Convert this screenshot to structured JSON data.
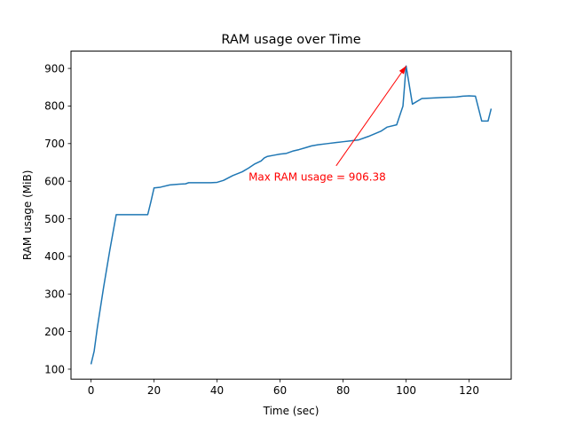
{
  "chart_data": {
    "type": "line",
    "title": "RAM usage over Time",
    "xlabel": "Time (sec)",
    "ylabel": "RAM usage (MiB)",
    "xlim": [
      -6.35,
      133.35
    ],
    "ylim": [
      73.5,
      946.0
    ],
    "xticks": [
      0,
      20,
      40,
      60,
      80,
      100,
      120
    ],
    "yticks": [
      100,
      200,
      300,
      400,
      500,
      600,
      700,
      800,
      900
    ],
    "grid": false,
    "series": [
      {
        "color": "#1f77b4",
        "x": [
          0,
          1,
          2,
          4,
          6,
          8,
          8.5,
          9,
          10,
          15,
          18,
          19,
          20,
          22,
          25,
          28,
          30,
          31,
          35,
          38,
          40,
          42,
          45,
          48,
          50,
          52,
          54,
          55,
          56,
          58,
          60,
          62,
          64,
          66,
          68,
          70,
          72,
          75,
          78,
          80,
          82,
          85,
          88,
          92,
          94,
          97,
          99,
          100,
          102,
          105,
          108,
          112,
          116,
          118,
          120,
          122,
          124,
          126,
          127
        ],
        "y": [
          113,
          148,
          210,
          318,
          418,
          511,
          511,
          511,
          511,
          511,
          511,
          545,
          582,
          584,
          590,
          592,
          593,
          596,
          596,
          596,
          597,
          602,
          615,
          625,
          635,
          646,
          654,
          662,
          666,
          669,
          672,
          674,
          680,
          684,
          689,
          694,
          697,
          700,
          703,
          705,
          707,
          710,
          719,
          733,
          744,
          750,
          800,
          906.38,
          805,
          820,
          821,
          823,
          824,
          826,
          827,
          826,
          760,
          760,
          793
        ]
      }
    ],
    "annotation": {
      "text": "Max RAM usage = 906.38",
      "color": "#ff0000",
      "text_x": 50,
      "text_y": 611,
      "arrow_from": [
        77.8,
        641
      ],
      "arrow_to": [
        100,
        906.38
      ]
    }
  }
}
